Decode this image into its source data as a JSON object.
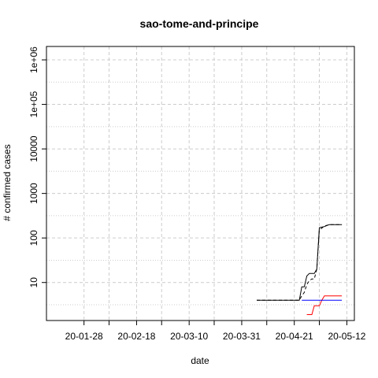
{
  "chart_data": {
    "type": "line",
    "title": "sao-tome-and-principe",
    "xlabel": "date",
    "ylabel": "# confirmed cases",
    "y_scale": "log10",
    "ylim": [
      1.4,
      2000000
    ],
    "xlim": [
      "2020-01-13",
      "2020-05-15"
    ],
    "x_ticks": [
      {
        "date": "2020-01-28",
        "label": "20-01-28"
      },
      {
        "date": "2020-02-18",
        "label": "20-02-18"
      },
      {
        "date": "2020-03-10",
        "label": "20-03-10"
      },
      {
        "date": "2020-03-31",
        "label": "20-03-31"
      },
      {
        "date": "2020-04-21",
        "label": "20-04-21"
      },
      {
        "date": "2020-05-12",
        "label": "20-05-12"
      }
    ],
    "x_minor_gridlines": [
      "2020-01-28",
      "2020-02-07",
      "2020-02-18",
      "2020-02-28",
      "2020-03-10",
      "2020-03-20",
      "2020-03-31",
      "2020-04-10",
      "2020-04-21",
      "2020-05-01",
      "2020-05-12"
    ],
    "y_ticks": [
      {
        "value": 10,
        "label": "10"
      },
      {
        "value": 100,
        "label": "100"
      },
      {
        "value": 1000,
        "label": "1000"
      },
      {
        "value": 10000,
        "label": "10000"
      },
      {
        "value": 100000,
        "label": "1e+05"
      },
      {
        "value": 1000000,
        "label": "1e+06"
      }
    ],
    "grid": true,
    "colors": {
      "confirmed": "#000000",
      "fit": "#000000",
      "deaths": "#ff0000",
      "recovered": "#0000ff",
      "grid": "#cccccc"
    },
    "series": [
      {
        "style": "solid",
        "color": "#000000",
        "points": [
          [
            "2020-04-06",
            4
          ],
          [
            "2020-04-23",
            4
          ],
          [
            "2020-04-24",
            8
          ],
          [
            "2020-04-25",
            8
          ],
          [
            "2020-04-26",
            14
          ],
          [
            "2020-04-27",
            16
          ],
          [
            "2020-04-29",
            16
          ],
          [
            "2020-04-30",
            20
          ],
          [
            "2020-05-01",
            170
          ],
          [
            "2020-05-02",
            175
          ],
          [
            "2020-05-03",
            180
          ],
          [
            "2020-05-05",
            200
          ],
          [
            "2020-05-07",
            200
          ],
          [
            "2020-05-10",
            200
          ]
        ]
      },
      {
        "style": "dashed",
        "color": "#000000",
        "points": [
          [
            "2020-04-06",
            4
          ],
          [
            "2020-04-23",
            4
          ],
          [
            "2020-04-24",
            5
          ],
          [
            "2020-04-25",
            6
          ],
          [
            "2020-04-26",
            9
          ],
          [
            "2020-04-27",
            11
          ],
          [
            "2020-04-28",
            12
          ],
          [
            "2020-04-29",
            12
          ],
          [
            "2020-04-30",
            20
          ],
          [
            "2020-05-01",
            150
          ],
          [
            "2020-05-03",
            185
          ],
          [
            "2020-05-05",
            200
          ],
          [
            "2020-05-10",
            200
          ]
        ]
      },
      {
        "style": "solid",
        "color": "#ff0000",
        "points": [
          [
            "2020-04-26",
            1.9
          ],
          [
            "2020-04-28",
            1.9
          ],
          [
            "2020-04-29",
            3
          ],
          [
            "2020-05-01",
            3
          ],
          [
            "2020-05-02",
            4
          ],
          [
            "2020-05-03",
            5
          ],
          [
            "2020-05-10",
            5
          ]
        ]
      },
      {
        "style": "solid",
        "color": "#0000ff",
        "points": [
          [
            "2020-04-24",
            4
          ],
          [
            "2020-05-10",
            4
          ]
        ]
      }
    ]
  }
}
